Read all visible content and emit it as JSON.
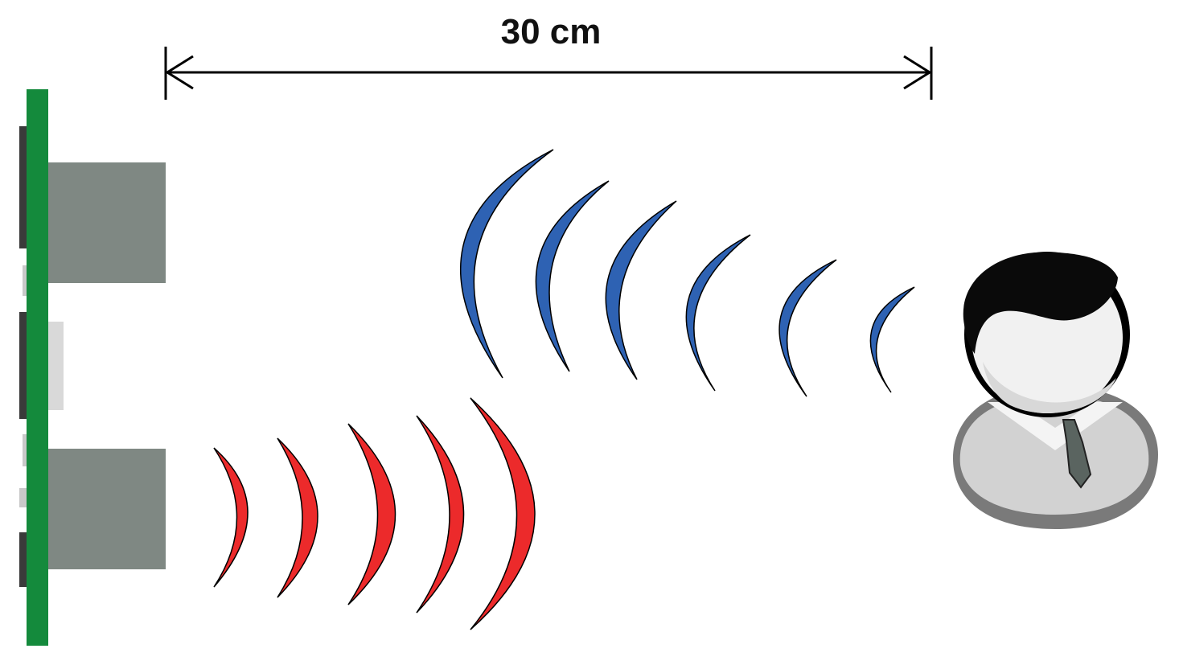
{
  "measurement": {
    "label": "30 cm"
  },
  "colors": {
    "pcb": "#148a3c",
    "pcb_chip": "#3a3a3a",
    "pcb_pad": "#c9c9c9",
    "transducer": "#7f8883",
    "emitted_wave": "#ec2a2b",
    "reflected_wave": "#2e62b3",
    "wave_outline": "#000000",
    "dimension_line": "#000000",
    "person_hair": "#0a0a0a",
    "person_face": "#f1f1f1",
    "person_body": "#d2d2d2",
    "person_body_outline": "#7a7a7a",
    "person_tie": "#5a6460"
  },
  "icons": {
    "sensor": "ultrasonic-sensor-icon",
    "person": "person-icon",
    "emitted": "emitted-sound-wave-icon",
    "reflected": "reflected-echo-wave-icon"
  }
}
